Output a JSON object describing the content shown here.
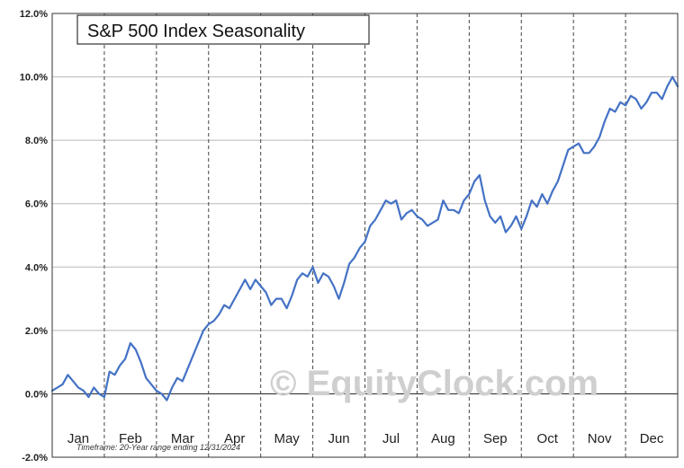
{
  "chart_data": {
    "type": "line",
    "title": "S&P 500 Index Seasonality",
    "xlabel": "",
    "ylabel": "",
    "ylim": [
      -2.0,
      12.0
    ],
    "y_ticks": [
      "12.0%",
      "10.0%",
      "8.0%",
      "6.0%",
      "4.0%",
      "2.0%",
      "0.0%",
      "-2.0%"
    ],
    "y_tick_values": [
      12,
      10,
      8,
      6,
      4,
      2,
      0,
      -2
    ],
    "categories": [
      "Jan",
      "Feb",
      "Mar",
      "Apr",
      "May",
      "Jun",
      "Jul",
      "Aug",
      "Sep",
      "Oct",
      "Nov",
      "Dec"
    ],
    "grid": true,
    "line_color": "#4472c4",
    "series": [
      {
        "name": "",
        "x": [
          0,
          0.1,
          0.2,
          0.3,
          0.4,
          0.5,
          0.6,
          0.7,
          0.8,
          0.9,
          1.0,
          1.1,
          1.2,
          1.3,
          1.4,
          1.5,
          1.6,
          1.7,
          1.8,
          1.9,
          2.0,
          2.1,
          2.2,
          2.3,
          2.4,
          2.5,
          2.6,
          2.7,
          2.8,
          2.9,
          3.0,
          3.1,
          3.2,
          3.3,
          3.4,
          3.5,
          3.6,
          3.7,
          3.8,
          3.9,
          4.0,
          4.1,
          4.2,
          4.3,
          4.4,
          4.5,
          4.6,
          4.7,
          4.8,
          4.9,
          5.0,
          5.1,
          5.2,
          5.3,
          5.4,
          5.5,
          5.6,
          5.7,
          5.8,
          5.9,
          6.0,
          6.1,
          6.2,
          6.3,
          6.4,
          6.5,
          6.6,
          6.7,
          6.8,
          6.9,
          7.0,
          7.1,
          7.2,
          7.3,
          7.4,
          7.5,
          7.6,
          7.7,
          7.8,
          7.9,
          8.0,
          8.1,
          8.2,
          8.3,
          8.4,
          8.5,
          8.6,
          8.7,
          8.8,
          8.9,
          9.0,
          9.1,
          9.2,
          9.3,
          9.4,
          9.5,
          9.6,
          9.7,
          9.8,
          9.9,
          10.0,
          10.1,
          10.2,
          10.3,
          10.4,
          10.5,
          10.6,
          10.7,
          10.8,
          10.9,
          11.0,
          11.1,
          11.2,
          11.3,
          11.4,
          11.5,
          11.6,
          11.7,
          11.8,
          11.9,
          12.0
        ],
        "values": [
          0.1,
          0.2,
          0.3,
          0.6,
          0.4,
          0.2,
          0.1,
          -0.1,
          0.2,
          0.0,
          -0.1,
          0.7,
          0.6,
          0.9,
          1.1,
          1.6,
          1.4,
          1.0,
          0.5,
          0.3,
          0.1,
          0.0,
          -0.2,
          0.2,
          0.5,
          0.4,
          0.8,
          1.2,
          1.6,
          2.0,
          2.2,
          2.3,
          2.5,
          2.8,
          2.7,
          3.0,
          3.3,
          3.6,
          3.3,
          3.6,
          3.4,
          3.2,
          2.8,
          3.0,
          3.0,
          2.7,
          3.1,
          3.6,
          3.8,
          3.7,
          4.0,
          3.5,
          3.8,
          3.7,
          3.4,
          3.0,
          3.5,
          4.1,
          4.3,
          4.6,
          4.8,
          5.3,
          5.5,
          5.8,
          6.1,
          6.0,
          6.1,
          5.5,
          5.7,
          5.8,
          5.6,
          5.5,
          5.3,
          5.4,
          5.5,
          6.1,
          5.8,
          5.8,
          5.7,
          6.1,
          6.3,
          6.7,
          6.9,
          6.1,
          5.6,
          5.4,
          5.6,
          5.1,
          5.3,
          5.6,
          5.2,
          5.6,
          6.1,
          5.9,
          6.3,
          6.0,
          6.4,
          6.7,
          7.2,
          7.7,
          7.8,
          7.9,
          7.6,
          7.6,
          7.8,
          8.1,
          8.6,
          9.0,
          8.9,
          9.2,
          9.1,
          9.4,
          9.3,
          9.0,
          9.2,
          9.5,
          9.5,
          9.3,
          9.7,
          10.0,
          9.7
        ]
      }
    ],
    "watermark": "© EquityClock.com",
    "footnote": "Timeframe: 20-Year range ending 12/31/2024"
  }
}
